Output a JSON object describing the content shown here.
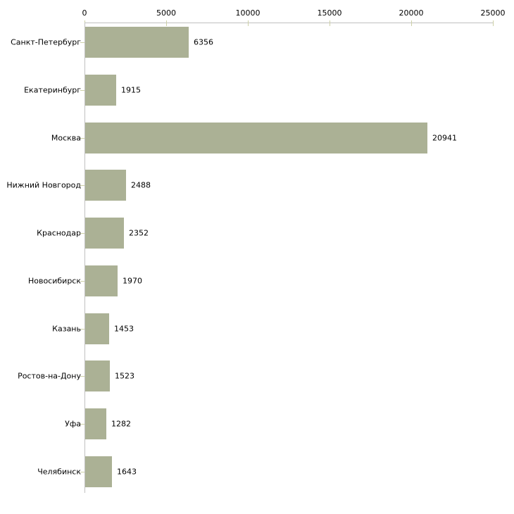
{
  "chart_data": {
    "type": "bar",
    "orientation": "horizontal",
    "title": "",
    "xlabel": "",
    "ylabel": "",
    "categories": [
      "Санкт-Петербург",
      "Екатеринбург",
      "Москва",
      "Нижний Новгород",
      "Краснодар",
      "Новосибирск",
      "Казань",
      "Ростов-на-Дону",
      "Уфа",
      "Челябинск"
    ],
    "values": [
      6356,
      1915,
      20941,
      2488,
      2352,
      1970,
      1453,
      1523,
      1282,
      1643
    ],
    "value_labels": [
      "6356",
      "1915",
      "20941",
      "2488",
      "2352",
      "1970",
      "1453",
      "1523",
      "1282",
      "1643"
    ],
    "xlim": [
      0,
      25000
    ],
    "x_ticks": [
      0,
      5000,
      10000,
      15000,
      20000,
      25000
    ],
    "x_tick_labels": [
      "0",
      "5000",
      "10000",
      "15000",
      "20000",
      "25000"
    ],
    "axis_position": "top",
    "grid": false,
    "legend": "none",
    "colors": {
      "bar_fill": "#abb195",
      "axis_line": "#c0c0c0",
      "tick_mark": "#cdd0a7",
      "text": "#000000",
      "background": "#ffffff"
    }
  }
}
